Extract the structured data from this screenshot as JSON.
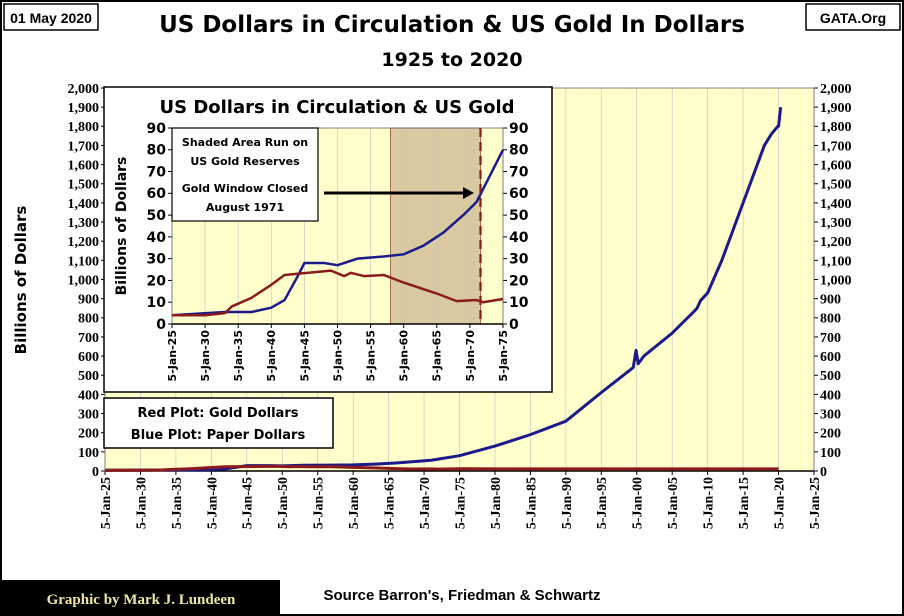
{
  "header": {
    "date": "01 May 2020",
    "site": "GATA.Org",
    "title": "US Dollars in Circulation & US Gold In Dollars",
    "subtitle": "1925 to 2020"
  },
  "footer": {
    "credit": "Graphic by Mark J. Lundeen",
    "source": "Source Barron's, Friedman & Schwartz"
  },
  "legend": {
    "red": "Red Plot: Gold Dollars",
    "blue": "Blue Plot: Paper Dollars"
  },
  "colors": {
    "paper": "#1a1a8c",
    "gold": "#8b1a1a",
    "plot_bg": "#ffffcc",
    "shade": "#d9c9a0"
  },
  "chart_data": [
    {
      "type": "line",
      "title": "US Dollars in Circulation & US Gold In Dollars",
      "ylabel": "Billions  of  Dollars",
      "xlim": [
        1925,
        2025
      ],
      "ylim": [
        0,
        2000
      ],
      "ytick_step": 100,
      "xticks": [
        "5-Jan-25",
        "5-Jan-30",
        "5-Jan-35",
        "5-Jan-40",
        "5-Jan-45",
        "5-Jan-50",
        "5-Jan-55",
        "5-Jan-60",
        "5-Jan-65",
        "5-Jan-70",
        "5-Jan-75",
        "5-Jan-80",
        "5-Jan-85",
        "5-Jan-90",
        "5-Jan-95",
        "5-Jan-00",
        "5-Jan-05",
        "5-Jan-10",
        "5-Jan-15",
        "5-Jan-20",
        "5-Jan-25"
      ],
      "yticks": [
        "0",
        "100",
        "200",
        "300",
        "400",
        "500",
        "600",
        "700",
        "800",
        "900",
        "1,000",
        "1,100",
        "1,200",
        "1,300",
        "1,400",
        "1,500",
        "1,600",
        "1,700",
        "1,800",
        "1,900",
        "2,000"
      ],
      "series": [
        {
          "name": "Paper Dollars",
          "color": "#1a1a8c",
          "x": [
            1925,
            1933,
            1937,
            1940,
            1942,
            1944,
            1945,
            1948,
            1950,
            1953,
            1957,
            1960,
            1963,
            1966,
            1969,
            1971,
            1975,
            1980,
            1985,
            1990,
            1995,
            1999.5,
            1999.9,
            2000.2,
            2001,
            2005,
            2008,
            2008.5,
            2009,
            2010,
            2012,
            2015,
            2018,
            2019,
            2019.9,
            2020,
            2020.3
          ],
          "y": [
            4,
            5.5,
            5.5,
            7.5,
            11,
            22,
            28,
            28,
            27,
            30,
            31,
            32,
            36,
            42,
            50,
            56,
            80,
            130,
            190,
            260,
            410,
            540,
            630,
            560,
            600,
            720,
            830,
            850,
            890,
            930,
            1100,
            1400,
            1700,
            1760,
            1800,
            1800,
            1900
          ]
        },
        {
          "name": "Gold Dollars",
          "color": "#8b1a1a",
          "x": [
            1925,
            1930,
            1933,
            1934,
            1937,
            1940,
            1942,
            1949,
            1951,
            1952,
            1954,
            1957,
            1960,
            1965,
            1968,
            1971,
            1972,
            1975,
            2019,
            2020
          ],
          "y": [
            4,
            4,
            5,
            8,
            12,
            18,
            22.5,
            24.5,
            22,
            23.5,
            22,
            22.5,
            19,
            14,
            10.5,
            11,
            10,
            11.5,
            11,
            11
          ]
        }
      ]
    },
    {
      "type": "line",
      "title": "US Dollars in Circulation & US Gold",
      "ylabel": "Billions  of  Dollars",
      "xlim": [
        1925,
        1975
      ],
      "ylim": [
        0,
        90
      ],
      "xticks": [
        "5-Jan-25",
        "5-Jan-30",
        "5-Jan-35",
        "5-Jan-40",
        "5-Jan-45",
        "5-Jan-50",
        "5-Jan-55",
        "5-Jan-60",
        "5-Jan-65",
        "5-Jan-70",
        "5-Jan-75"
      ],
      "yticks": [
        "0",
        "10",
        "20",
        "30",
        "40",
        "50",
        "60",
        "70",
        "80",
        "90"
      ],
      "shaded_range": [
        1958,
        1971.6
      ],
      "event_line": 1971.6,
      "annotation": {
        "line1": "Shaded Area Run on",
        "line2": "US Gold Reserves",
        "line3": "Gold Window Closed",
        "line4": "August 1971"
      }
    }
  ]
}
